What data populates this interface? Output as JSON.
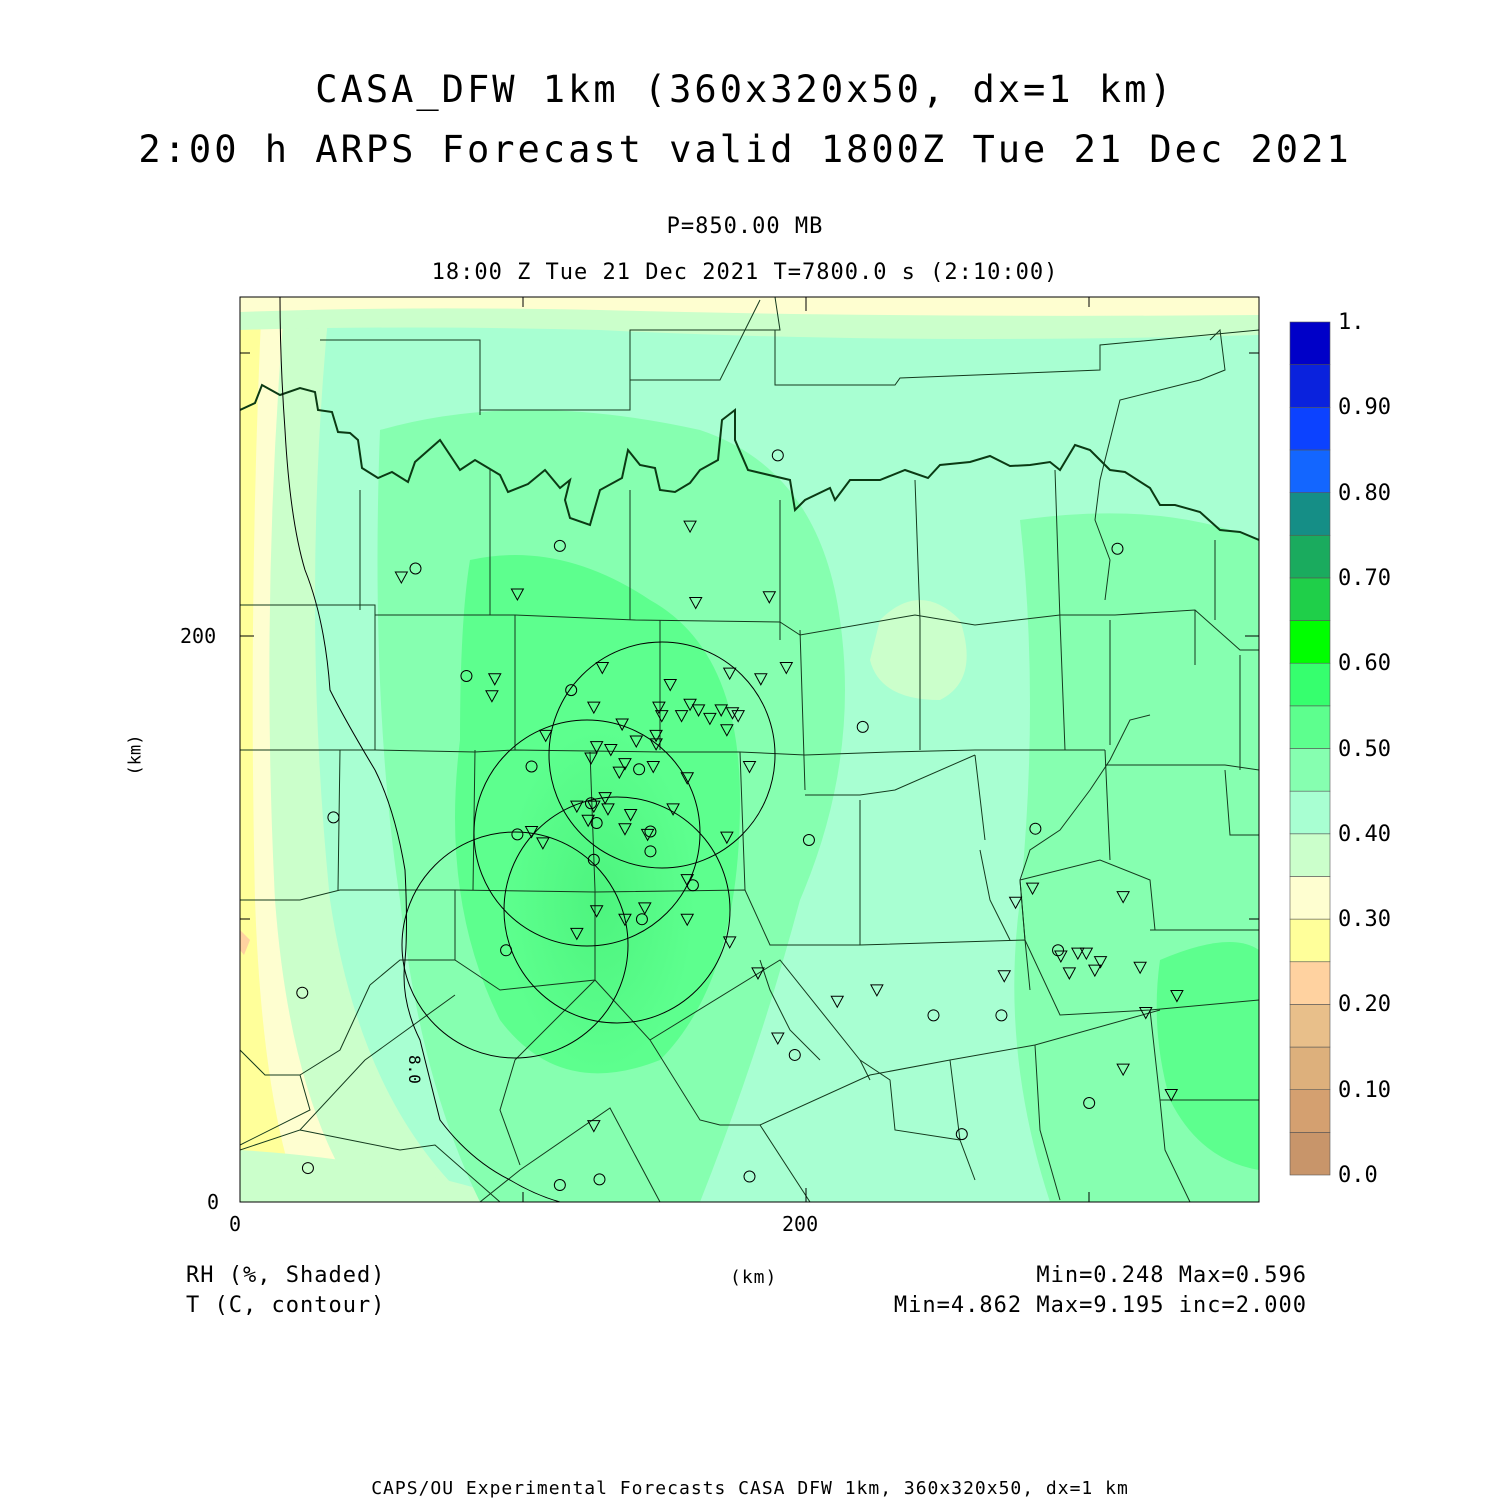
{
  "title_line1": "CASA_DFW 1km (360x320x50, dx=1 km)",
  "title_line2": "2:00 h ARPS Forecast valid 1800Z Tue 21 Dec 2021",
  "subtitle_level": "P=850.00 MB",
  "subtitle_time": "18:00 Z Tue 21 Dec 2021   T=7800.0 s (2:10:00)",
  "axes": {
    "x_ticks": [
      "0",
      "200"
    ],
    "y_ticks": [
      "0",
      "200"
    ],
    "x_unit": "(km)",
    "y_unit": "(km)",
    "xlim": [
      0,
      360
    ],
    "ylim": [
      0,
      320
    ]
  },
  "colorbar": {
    "labels": [
      "1.",
      "0.90",
      "0.80",
      "0.70",
      "0.60",
      "0.50",
      "0.40",
      "0.30",
      "0.20",
      "0.10",
      "0.0"
    ],
    "colors": [
      "#c8956a",
      "#d4a070",
      "#ddb07c",
      "#e8bf8a",
      "#ffd2a0",
      "#ffff9a",
      "#fefed0",
      "#cbffcb",
      "#a8ffd2",
      "#86ffb0",
      "#5dff8e",
      "#36ff6e",
      "#00ff00",
      "#1fcf49",
      "#1aab5e",
      "#158e86",
      "#1366ff",
      "#0c42ff",
      "#0a22dd",
      "#0000c8"
    ]
  },
  "contour_label": "8.0",
  "legend": {
    "shaded": "RH (%, Shaded)",
    "contour": "T (C, contour)"
  },
  "stats": {
    "shaded": "Min=0.248 Max=0.596",
    "contour": "Min=4.862 Max=9.195 inc=2.000"
  },
  "footer": "CAPS/OU Experimental Forecasts  CASA DFW 1km, 360x320x50, dx=1 km",
  "stations": {
    "circles_km": [
      [
        190,
        264
      ],
      [
        113,
        232
      ],
      [
        310,
        231
      ],
      [
        62,
        224
      ],
      [
        80,
        186
      ],
      [
        117,
        181
      ],
      [
        220,
        168
      ],
      [
        103,
        154
      ],
      [
        141,
        153
      ],
      [
        124,
        141
      ],
      [
        126,
        134
      ],
      [
        33,
        136
      ],
      [
        98,
        130
      ],
      [
        281,
        132
      ],
      [
        145,
        131
      ],
      [
        201,
        128
      ],
      [
        145,
        124
      ],
      [
        125,
        121
      ],
      [
        160,
        112
      ],
      [
        142,
        100
      ],
      [
        94,
        89
      ],
      [
        245,
        66
      ],
      [
        22,
        74
      ],
      [
        196,
        52
      ],
      [
        289,
        89
      ],
      [
        269,
        66
      ],
      [
        300,
        35
      ],
      [
        255,
        24
      ],
      [
        24,
        12
      ],
      [
        180,
        9
      ],
      [
        127,
        8
      ],
      [
        113,
        6
      ]
    ],
    "triangles_km": [
      [
        159,
        239
      ],
      [
        57,
        221
      ],
      [
        98,
        215
      ],
      [
        161,
        212
      ],
      [
        187,
        214
      ],
      [
        90,
        185
      ],
      [
        89,
        179
      ],
      [
        128,
        189
      ],
      [
        152,
        183
      ],
      [
        193,
        189
      ],
      [
        173,
        187
      ],
      [
        184,
        185
      ],
      [
        159,
        176
      ],
      [
        162,
        174
      ],
      [
        170,
        174
      ],
      [
        174,
        173
      ],
      [
        176,
        172
      ],
      [
        166,
        171
      ],
      [
        172,
        167
      ],
      [
        156,
        172
      ],
      [
        149,
        172
      ],
      [
        148,
        175
      ],
      [
        135,
        169
      ],
      [
        125,
        175
      ],
      [
        108,
        165
      ],
      [
        140,
        163
      ],
      [
        126,
        161
      ],
      [
        131,
        160
      ],
      [
        147,
        165
      ],
      [
        180,
        154
      ],
      [
        158,
        150
      ],
      [
        134,
        152
      ],
      [
        136,
        155
      ],
      [
        146,
        154
      ],
      [
        124,
        157
      ],
      [
        119,
        140
      ],
      [
        125,
        140
      ],
      [
        130,
        139
      ],
      [
        123,
        135
      ],
      [
        138,
        137
      ],
      [
        153,
        139
      ],
      [
        129,
        143
      ],
      [
        147,
        162
      ],
      [
        103,
        131
      ],
      [
        144,
        130
      ],
      [
        107,
        127
      ],
      [
        136,
        132
      ],
      [
        172,
        129
      ],
      [
        158,
        114
      ],
      [
        143,
        104
      ],
      [
        119,
        95
      ],
      [
        158,
        100
      ],
      [
        136,
        100
      ],
      [
        126,
        103
      ],
      [
        173,
        92
      ],
      [
        183,
        81
      ],
      [
        225,
        75
      ],
      [
        211,
        71
      ],
      [
        190,
        58
      ],
      [
        280,
        111
      ],
      [
        293,
        81
      ],
      [
        290,
        87
      ],
      [
        296,
        88
      ],
      [
        299,
        88
      ],
      [
        302,
        82
      ],
      [
        304,
        85
      ],
      [
        318,
        83
      ],
      [
        312,
        108
      ],
      [
        274,
        106
      ],
      [
        270,
        80
      ],
      [
        312,
        47
      ],
      [
        125,
        27
      ],
      [
        320,
        67
      ],
      [
        331,
        73
      ],
      [
        329,
        38
      ]
    ]
  }
}
